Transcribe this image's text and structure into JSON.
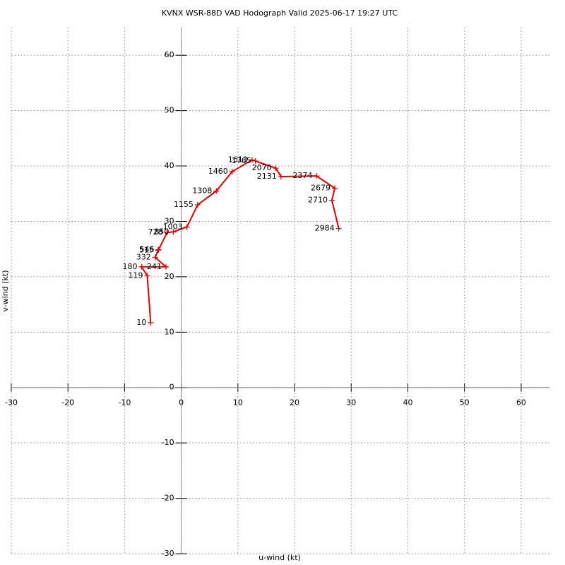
{
  "chart_data": {
    "type": "line",
    "title": "KVNX WSR-88D VAD Hodograph Valid 2025-06-17 19:27 UTC",
    "x_label": "u-wind (kt)",
    "y_label": "v-wind (kt)",
    "x": [
      -5.4,
      -6.0,
      -7.0,
      -2.7,
      -4.6,
      -4.1,
      -4.0,
      -2.5,
      -1.4,
      1.0,
      2.9,
      6.2,
      9.0,
      12.5,
      13.1,
      16.7,
      17.6,
      23.9,
      27.1,
      26.6,
      27.8
    ],
    "values": [
      11.7,
      20.2,
      21.8,
      21.8,
      23.5,
      24.8,
      24.9,
      28.0,
      28.1,
      29.0,
      33.0,
      35.5,
      39.0,
      41.1,
      40.9,
      39.6,
      38.1,
      38.2,
      36.0,
      33.8,
      28.7
    ],
    "point_labels": [
      "10",
      "119",
      "180",
      "241",
      "332",
      "515",
      "546",
      "728",
      "850",
      "1003",
      "1155",
      "1308",
      "1460",
      "1613",
      "1765",
      "2070",
      "2131",
      "2374",
      "2679",
      "2710",
      "2984"
    ],
    "color": "#dd0000",
    "xlim": [
      -30,
      65
    ],
    "ylim": [
      -30,
      65
    ],
    "xticks": [
      -30,
      -20,
      -10,
      0,
      10,
      20,
      30,
      40,
      50,
      60
    ],
    "yticks": [
      -30,
      -20,
      -10,
      0,
      10,
      20,
      30,
      40,
      50,
      60
    ],
    "grid": true
  }
}
